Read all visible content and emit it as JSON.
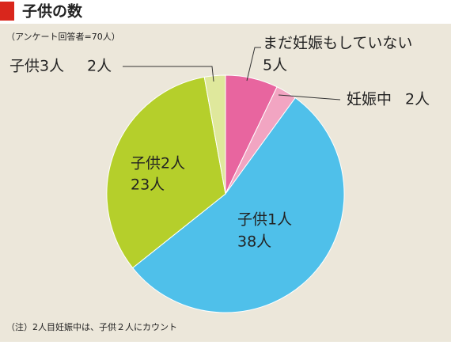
{
  "chart_data": {
    "type": "pie",
    "title": "子供の数",
    "subtitle": "（アンケート回答者=70人）",
    "note": "（注）2人目妊娠中は、子供２人にカウント",
    "categories": [
      "まだ妊娠もしていない",
      "妊娠中",
      "子供1人",
      "子供2人",
      "子供3人"
    ],
    "values": [
      5,
      2,
      38,
      23,
      2
    ],
    "value_labels": [
      "5人",
      "2人",
      "38人",
      "23人",
      "2人"
    ],
    "colors": [
      "#e8659f",
      "#f2a5c2",
      "#4fc0ea",
      "#b5cf2b",
      "#dfe89c"
    ]
  }
}
